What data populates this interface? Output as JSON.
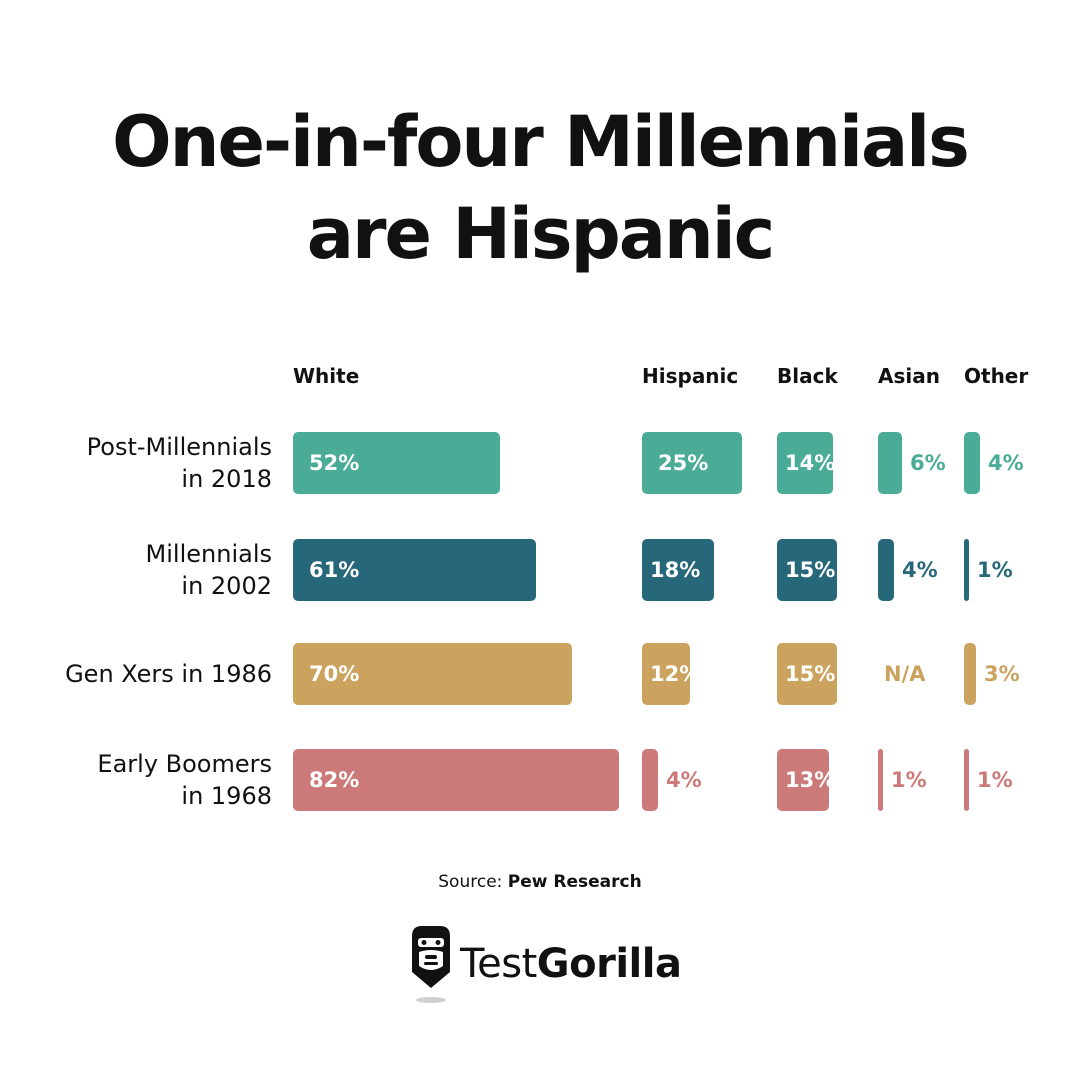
{
  "title": {
    "line1": "One-in-four Millennials",
    "line2": "are Hispanic"
  },
  "source": {
    "prefix": "Source:",
    "name": "Pew Research"
  },
  "brand": {
    "light": "Test",
    "bold": "Gorilla"
  },
  "chart_data": {
    "type": "bar",
    "title": "One-in-four Millennials are Hispanic",
    "categories": [
      "White",
      "Hispanic",
      "Black",
      "Asian",
      "Other"
    ],
    "rows": [
      {
        "label_lines": [
          "Post-Millennials",
          "in 2018"
        ],
        "color": "#4aab97",
        "values": [
          52,
          25,
          14,
          6,
          4
        ],
        "labels": [
          "52%",
          "25%",
          "14%",
          "6%",
          "4%"
        ]
      },
      {
        "label_lines": [
          "Millennials",
          "in 2002"
        ],
        "color": "#266779",
        "values": [
          61,
          18,
          15,
          4,
          1
        ],
        "labels": [
          "61%",
          "18%",
          "15%",
          "4%",
          "1%"
        ]
      },
      {
        "label_lines": [
          "Gen Xers in 1986"
        ],
        "color": "#cba35f",
        "values": [
          70,
          12,
          15,
          null,
          3
        ],
        "labels": [
          "70%",
          "12%",
          "15%",
          "N/A",
          "3%"
        ]
      },
      {
        "label_lines": [
          "Early Boomers",
          "in 1968"
        ],
        "color": "#cc7979",
        "values": [
          82,
          4,
          13,
          1,
          1
        ],
        "labels": [
          "82%",
          "4%",
          "13%",
          "1%",
          "1%"
        ]
      }
    ],
    "xlabel": "",
    "ylabel": "",
    "unit": "%"
  }
}
